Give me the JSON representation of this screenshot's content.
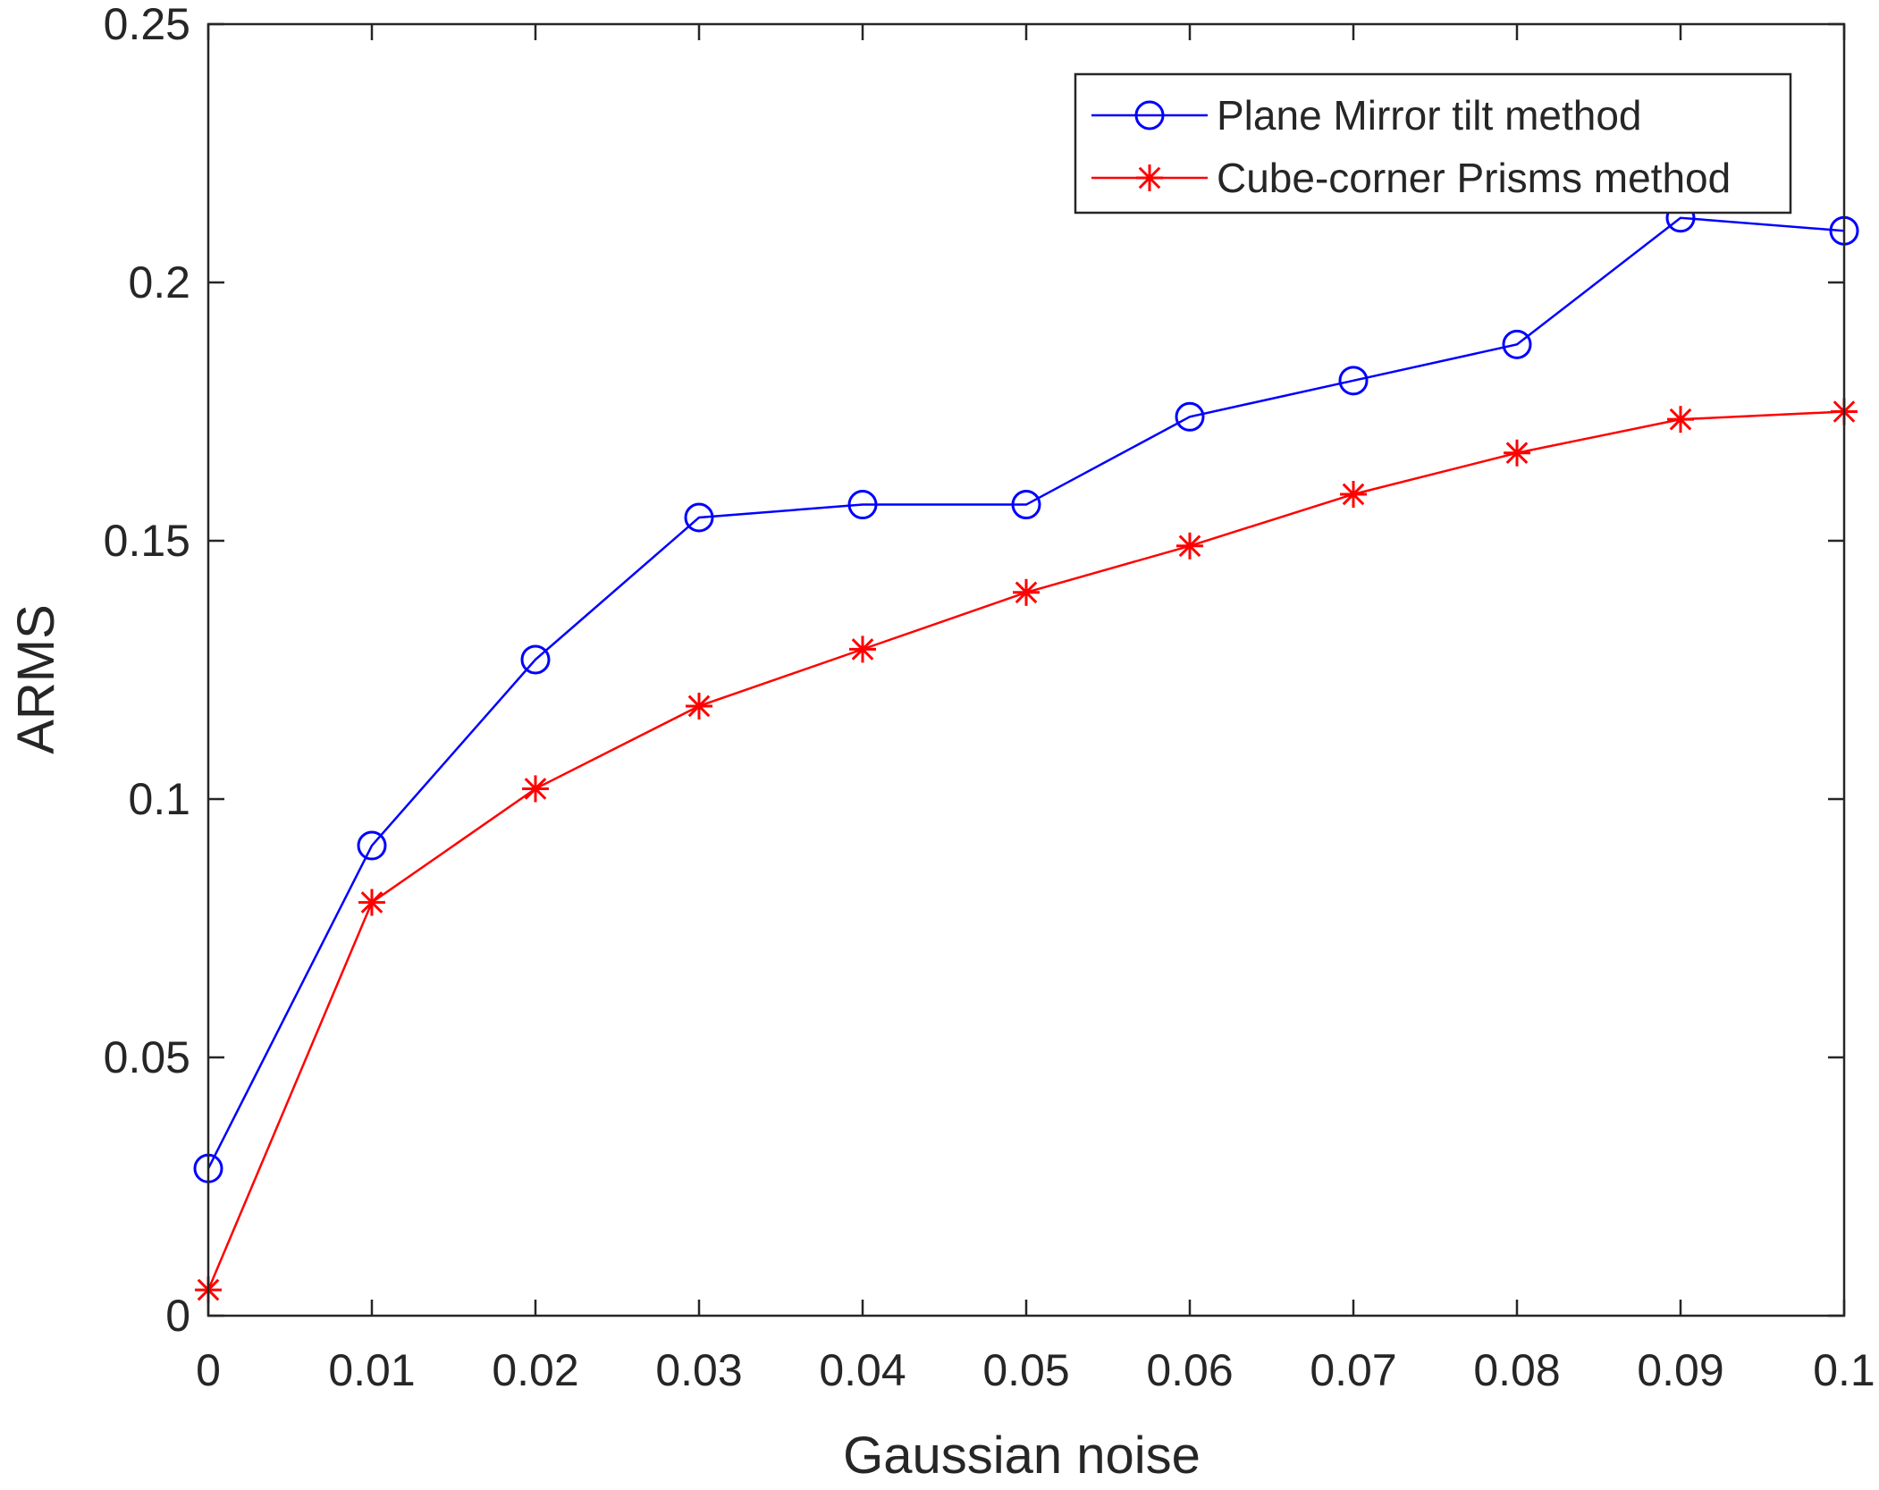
{
  "chart_data": {
    "type": "line",
    "title": "",
    "xlabel": "Gaussian noise",
    "ylabel": "ARMS",
    "x": [
      0,
      0.01,
      0.02,
      0.03,
      0.04,
      0.05,
      0.06,
      0.07,
      0.08,
      0.09,
      0.1
    ],
    "xlim": [
      0,
      0.1
    ],
    "ylim": [
      0,
      0.25
    ],
    "x_ticks": [
      "0",
      "0.01",
      "0.02",
      "0.03",
      "0.04",
      "0.05",
      "0.06",
      "0.07",
      "0.08",
      "0.09",
      "0.1"
    ],
    "y_ticks": [
      "0",
      "0.05",
      "0.1",
      "0.15",
      "0.2",
      "0.25"
    ],
    "grid": false,
    "legend_position": "top-right",
    "series": [
      {
        "name": "Plane Mirror tilt method",
        "color": "#0000ff",
        "marker": "circle",
        "values": [
          0.0285,
          0.091,
          0.127,
          0.1545,
          0.157,
          0.157,
          0.174,
          0.181,
          0.188,
          0.2125,
          0.21
        ]
      },
      {
        "name": "Cube-corner Prisms method",
        "color": "#ff0000",
        "marker": "star",
        "values": [
          0.005,
          0.08,
          0.102,
          0.118,
          0.129,
          0.14,
          0.149,
          0.159,
          0.167,
          0.1735,
          0.175
        ]
      }
    ]
  }
}
